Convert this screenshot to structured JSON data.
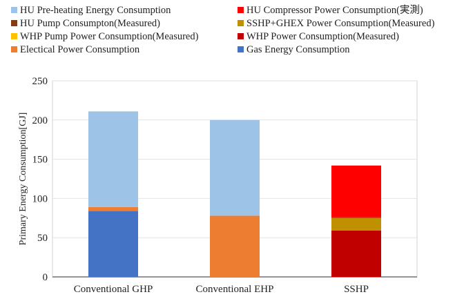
{
  "chart_data": {
    "type": "bar",
    "stacked": true,
    "categories": [
      "Conventional GHP",
      "Conventional EHP",
      "SSHP"
    ],
    "series": [
      {
        "name": "Gas Energy Consumption",
        "color": "#4472C4",
        "values": [
          84,
          0,
          0
        ]
      },
      {
        "name": "Electical Power Consumption",
        "color": "#ED7D31",
        "values": [
          5,
          78,
          0
        ]
      },
      {
        "name": "WHP Power Consumption(Measured)",
        "color": "#C00000",
        "values": [
          0,
          0,
          59
        ]
      },
      {
        "name": "WHP Pump Power Consumption(Measured)",
        "color": "#FFC000",
        "values": [
          0,
          0,
          0
        ]
      },
      {
        "name": "SSHP+GHEX Power Consumption(Measured)",
        "color": "#BF9000",
        "values": [
          0,
          0,
          16
        ]
      },
      {
        "name": "HU Pump Consumpton(Measured)",
        "color": "#843C0C",
        "values": [
          0,
          0,
          1
        ]
      },
      {
        "name": "HU Compressor Power Consumption(実測)",
        "color": "#FF0000",
        "values": [
          0,
          0,
          66
        ]
      },
      {
        "name": "HU Pre-heating Energy Consumption",
        "color": "#9DC3E6",
        "values": [
          122,
          122,
          0
        ]
      }
    ],
    "legend_order": [
      "HU Pre-heating Energy Consumption",
      "HU Compressor Power Consumption(実測)",
      "HU Pump Consumpton(Measured)",
      "SSHP+GHEX Power Consumption(Measured)",
      "WHP Pump Power Consumption(Measured)",
      "WHP Power Consumption(Measured)",
      "Electical Power Consumption",
      "Gas Energy Consumption"
    ],
    "ylabel": "Primary Energy Consumption[GJ]",
    "xlabel": "",
    "title": "",
    "ylim": [
      0,
      250
    ],
    "yticks": [
      0,
      50,
      100,
      150,
      200,
      250
    ],
    "grid": true,
    "legend_position": "top"
  }
}
